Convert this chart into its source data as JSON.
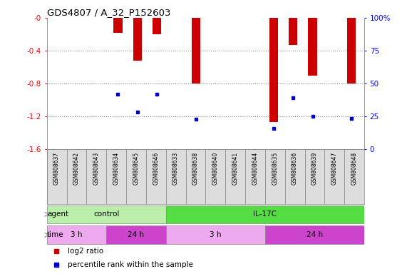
{
  "title": "GDS4807 / A_32_P152603",
  "samples": [
    "GSM808637",
    "GSM808642",
    "GSM808643",
    "GSM808634",
    "GSM808645",
    "GSM808646",
    "GSM808633",
    "GSM808638",
    "GSM808640",
    "GSM808641",
    "GSM808644",
    "GSM808635",
    "GSM808636",
    "GSM808639",
    "GSM808647",
    "GSM808648"
  ],
  "log2_ratio": [
    0.0,
    0.0,
    0.0,
    -0.18,
    -0.52,
    -0.2,
    0.0,
    -0.8,
    0.0,
    0.0,
    0.0,
    -1.27,
    -0.33,
    -0.7,
    0.0,
    -0.8
  ],
  "percentile_rank": [
    null,
    null,
    null,
    -0.93,
    -1.15,
    -0.93,
    null,
    -1.23,
    null,
    null,
    null,
    -1.35,
    -0.97,
    -1.2,
    null,
    -1.22
  ],
  "ylim_min": -1.6,
  "ylim_max": 0.0,
  "yticks": [
    0.0,
    -0.4,
    -0.8,
    -1.2,
    -1.6
  ],
  "ytick_labels_left": [
    "-0",
    "-0.4",
    "-0.8",
    "-1.2",
    "-1.6"
  ],
  "ytick_labels_right": [
    "100%",
    "75",
    "50",
    "25",
    "0"
  ],
  "bar_color": "#cc0000",
  "percentile_color": "#0000cc",
  "agent_groups": [
    {
      "label": "control",
      "start": 0,
      "end": 6,
      "color": "#bbeeaa"
    },
    {
      "label": "IL-17C",
      "start": 6,
      "end": 16,
      "color": "#55dd44"
    }
  ],
  "time_groups": [
    {
      "label": "3 h",
      "start": 0,
      "end": 3,
      "color": "#eeaaee"
    },
    {
      "label": "24 h",
      "start": 3,
      "end": 6,
      "color": "#cc44cc"
    },
    {
      "label": "3 h",
      "start": 6,
      "end": 11,
      "color": "#eeaaee"
    },
    {
      "label": "24 h",
      "start": 11,
      "end": 16,
      "color": "#cc44cc"
    }
  ],
  "agent_label": "agent",
  "time_label": "time",
  "legend_red_label": "log2 ratio",
  "legend_blue_label": "percentile rank within the sample",
  "fig_width": 5.71,
  "fig_height": 3.84,
  "dpi": 100,
  "background_color": "#ffffff",
  "plot_bg_color": "#ffffff",
  "sample_bg_color": "#dddddd",
  "bar_width": 0.45,
  "grid_color": "#888888",
  "border_color": "#888888"
}
